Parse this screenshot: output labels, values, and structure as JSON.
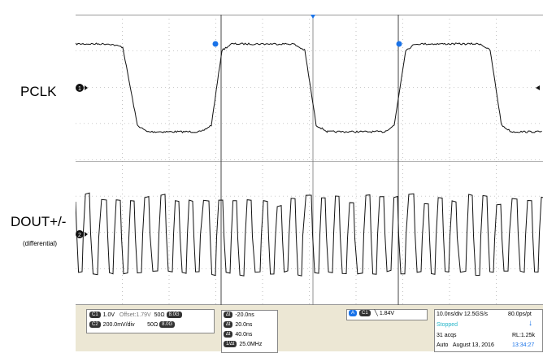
{
  "labels": {
    "pclk": "PCLK",
    "dout": "DOUT+/-",
    "differential": "(differential)"
  },
  "channels": {
    "ch1": {
      "tag": "C1",
      "scale": "1.0V",
      "offset": "Offset:1.79V",
      "impedance": "50Ω",
      "bw": "8.0G"
    },
    "ch2": {
      "tag": "C2",
      "scale": "200.0mV/div",
      "impedance": "50Ω",
      "bw": "8.0G"
    }
  },
  "measurements": [
    {
      "tag": "∆t",
      "value": "-20.0ns"
    },
    {
      "tag": "∆t",
      "value": "20.0ns"
    },
    {
      "tag": "∆t",
      "value": "40.0ns"
    },
    {
      "tag": "1/∆t",
      "value": "25.0MHz"
    }
  ],
  "trigger": {
    "tag_a": "A",
    "tag_c": "C1",
    "level": "1.84V"
  },
  "acquisition": {
    "timebase": "10.0ns/div",
    "sample_rate": "12.5GS/s",
    "resolution": "80.0ps/pt",
    "status": "Stopped",
    "acqs": "31 acqs",
    "record_length": "RL:1.25k",
    "mode": "Auto",
    "date": "August 13, 2016",
    "time": "13:34:27"
  },
  "colors": {
    "trace": "#111111",
    "grid": "#9a9a9a",
    "rail": "#c8b46b",
    "accent": "#1a73e8",
    "status": "#27b6c9"
  }
}
